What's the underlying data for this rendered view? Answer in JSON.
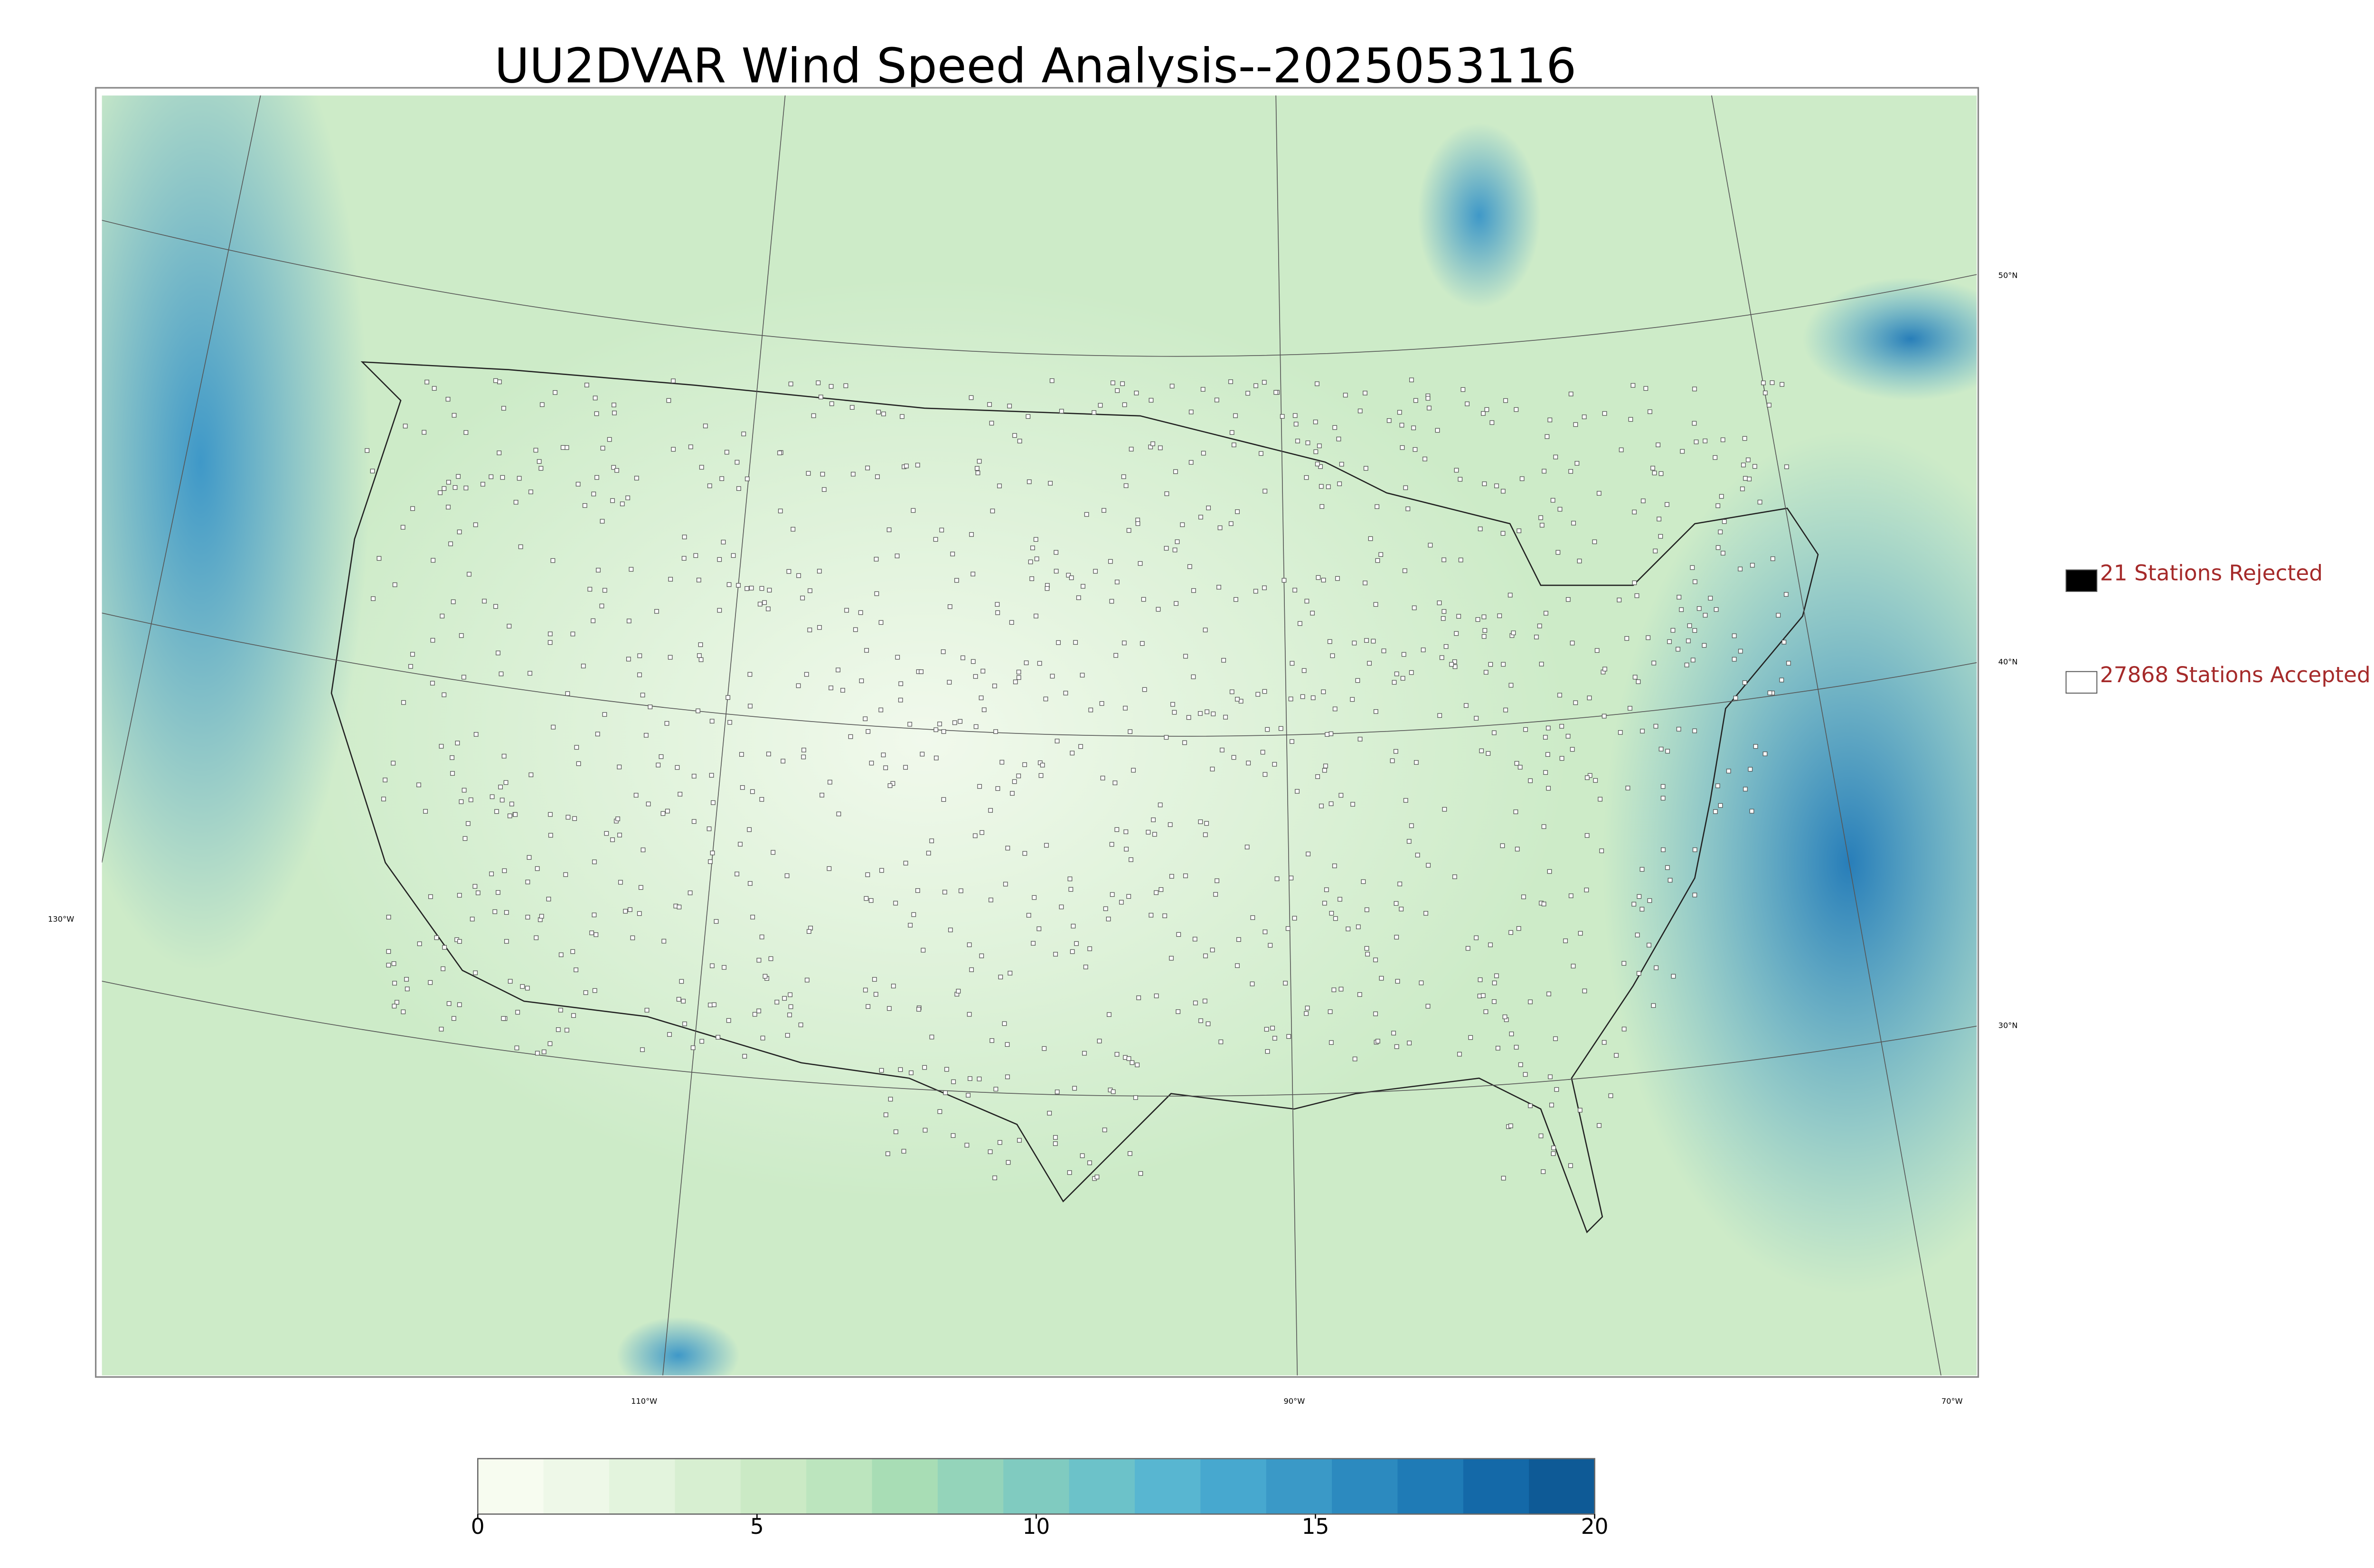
{
  "title": "UU2DVAR Wind Speed Analysis--2025053116",
  "map": {
    "lat_labels": [
      "50°N",
      "40°N",
      "30°N"
    ],
    "lon_labels": [
      "130°W",
      "110°W",
      "90°W",
      "70°W"
    ]
  },
  "legend": [
    {
      "label": "21 Stations Rejected",
      "color": "#000000"
    },
    {
      "label": "27868 Stations Accepted",
      "color": "#ffffff"
    }
  ],
  "colorbar": {
    "lim": [
      0,
      20
    ],
    "ticks": [
      0,
      5,
      10,
      15,
      20
    ],
    "colors": [
      "#f7fcf0",
      "#eef8e8",
      "#e3f4dd",
      "#d7efd1",
      "#cbeac5",
      "#bce5be",
      "#a8ddb5",
      "#94d4ba",
      "#80cbc0",
      "#6cc2c9",
      "#58b6d1",
      "#47a8cf",
      "#3a99c7",
      "#2c8abf",
      "#1f7bb6",
      "#1469a8",
      "#0e5a96"
    ]
  }
}
